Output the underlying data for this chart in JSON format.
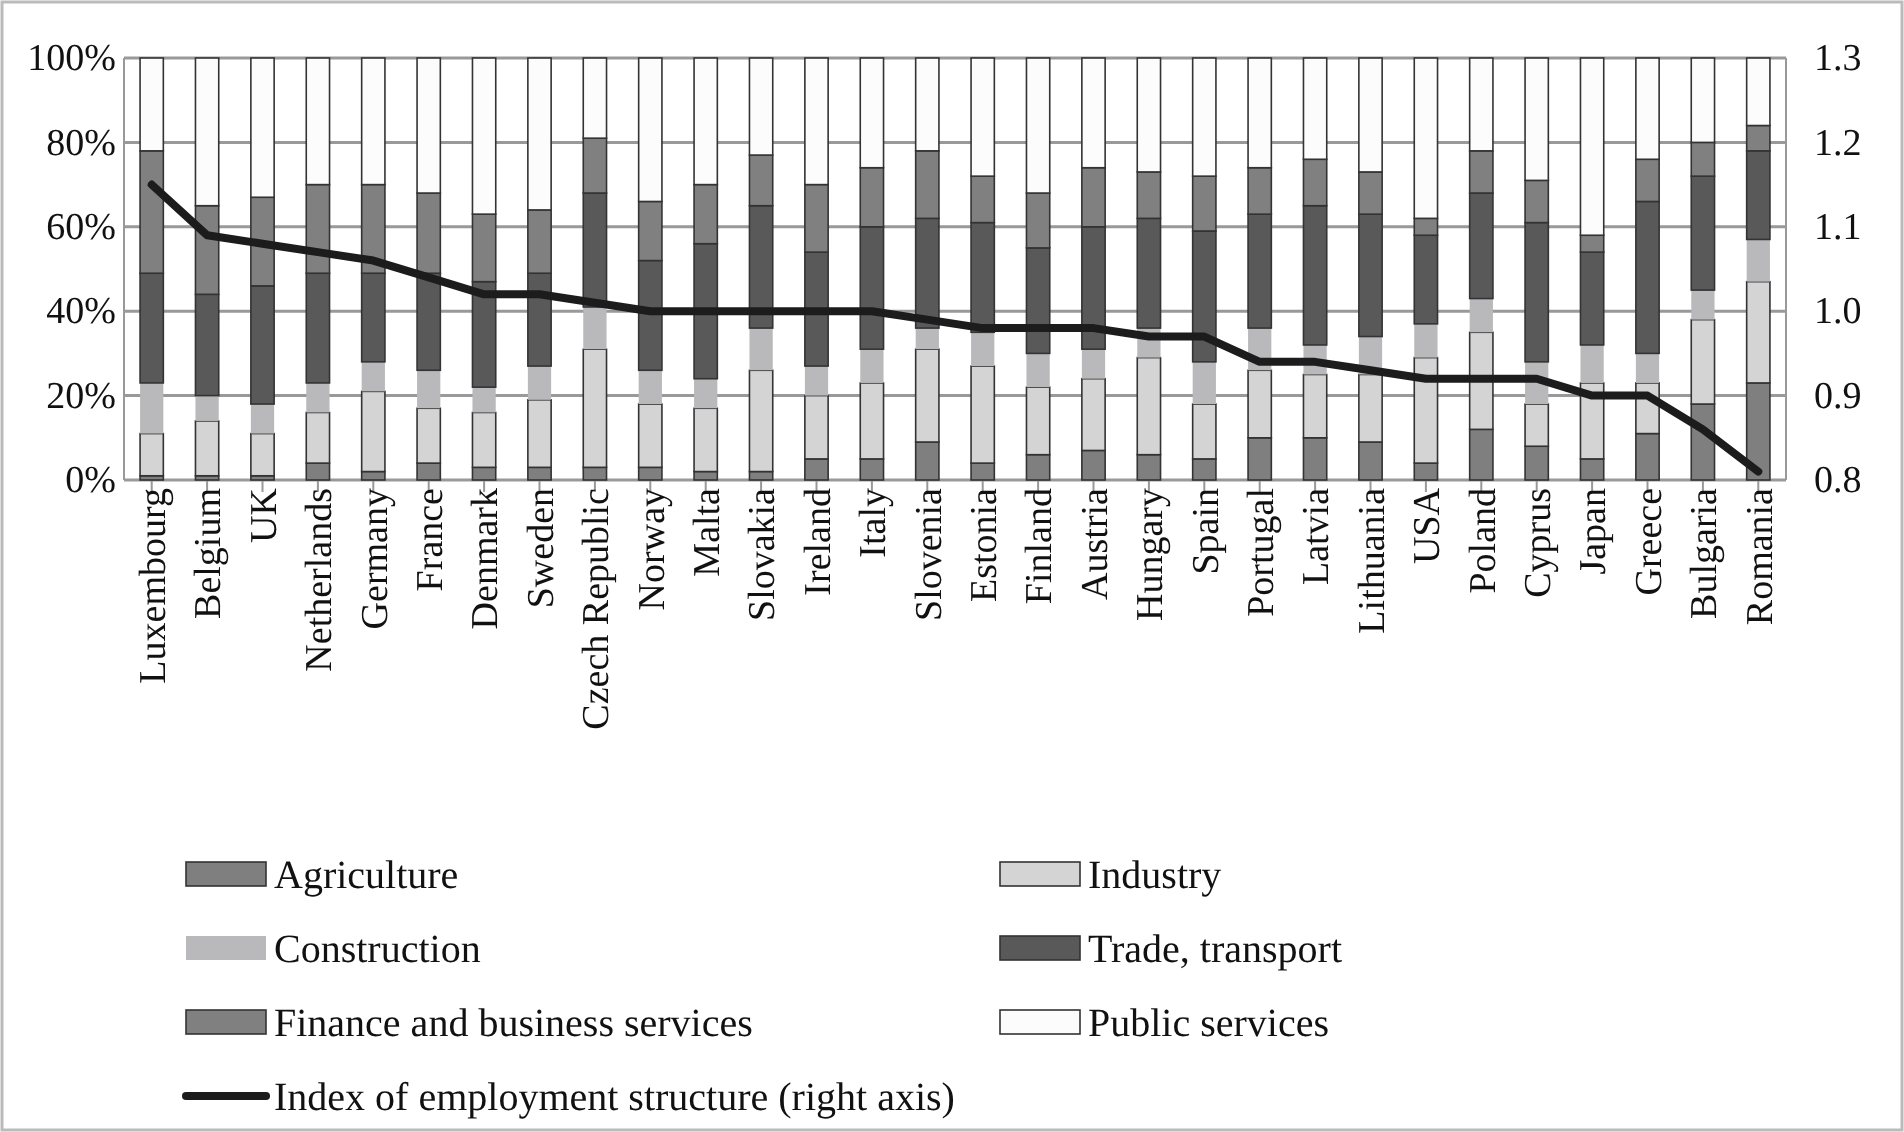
{
  "chart_data": {
    "type": "bar",
    "stacked": true,
    "categories": [
      "Luxembourg",
      "Belgium",
      "UK",
      "Netherlands",
      "Germany",
      "France",
      "Denmark",
      "Sweden",
      "Czech Republic",
      "Norway",
      "Malta",
      "Slovakia",
      "Ireland",
      "Italy",
      "Slovenia",
      "Estonia",
      "Finland",
      "Austria",
      "Hungary",
      "Spain",
      "Portugal",
      "Latvia",
      "Lithuania",
      "USA",
      "Poland",
      "Cyprus",
      "Japan",
      "Greece",
      "Bulgaria",
      "Romania"
    ],
    "series": [
      {
        "name": "Agriculture",
        "color": "#7f7f7f",
        "values": [
          1,
          1,
          1,
          4,
          2,
          4,
          3,
          3,
          3,
          3,
          2,
          2,
          5,
          5,
          9,
          4,
          6,
          7,
          6,
          5,
          10,
          10,
          9,
          4,
          12,
          8,
          5,
          11,
          18,
          23
        ]
      },
      {
        "name": "Industry",
        "color": "#d4d4d4",
        "values": [
          10,
          13,
          10,
          12,
          19,
          13,
          13,
          16,
          28,
          15,
          15,
          24,
          15,
          18,
          22,
          23,
          16,
          17,
          23,
          13,
          16,
          15,
          16,
          25,
          23,
          10,
          18,
          12,
          20,
          24
        ]
      },
      {
        "name": "Construction",
        "color": "#b9b9bc",
        "values": [
          12,
          6,
          7,
          7,
          7,
          9,
          6,
          8,
          10,
          8,
          7,
          10,
          7,
          8,
          5,
          8,
          8,
          7,
          7,
          10,
          10,
          7,
          9,
          8,
          8,
          10,
          9,
          7,
          7,
          10
        ]
      },
      {
        "name": "Trade, transport",
        "color": "#595959",
        "values": [
          26,
          24,
          28,
          26,
          21,
          23,
          25,
          22,
          27,
          26,
          32,
          29,
          27,
          29,
          26,
          26,
          25,
          29,
          26,
          31,
          27,
          33,
          29,
          21,
          25,
          33,
          22,
          36,
          27,
          21
        ]
      },
      {
        "name": "Finance and business services",
        "color": "#808080",
        "values": [
          29,
          21,
          21,
          21,
          21,
          19,
          16,
          15,
          13,
          14,
          14,
          12,
          16,
          14,
          16,
          11,
          13,
          14,
          11,
          13,
          11,
          11,
          10,
          4,
          10,
          10,
          4,
          10,
          8,
          6
        ]
      },
      {
        "name": "Public services",
        "color": "#fcfcfc",
        "values": [
          22,
          35,
          33,
          30,
          30,
          32,
          37,
          36,
          19,
          34,
          30,
          23,
          30,
          26,
          22,
          28,
          32,
          26,
          27,
          28,
          26,
          24,
          27,
          38,
          22,
          29,
          42,
          24,
          20,
          16
        ]
      },
      {
        "name": "Index of employment structure (right axis)",
        "type": "line",
        "axis": "y2",
        "color": "#1c1c1c",
        "values": [
          1.15,
          1.09,
          1.08,
          1.07,
          1.06,
          1.04,
          1.02,
          1.02,
          1.01,
          1.0,
          1.0,
          1.0,
          1.0,
          1.0,
          0.99,
          0.98,
          0.98,
          0.98,
          0.97,
          0.97,
          0.94,
          0.94,
          0.93,
          0.92,
          0.92,
          0.92,
          0.9,
          0.9,
          0.86,
          0.81
        ]
      }
    ],
    "ylim": [
      0,
      100
    ],
    "yticks": [
      {
        "value": 0,
        "label": "0%"
      },
      {
        "value": 20,
        "label": "20%"
      },
      {
        "value": 40,
        "label": "40%"
      },
      {
        "value": 60,
        "label": "60%"
      },
      {
        "value": 80,
        "label": "80%"
      },
      {
        "value": 100,
        "label": "100%"
      }
    ],
    "y2lim": [
      0.8,
      1.3
    ],
    "y2ticks": [
      0.8,
      0.9,
      {
        "value": 1.0,
        "label": "1.0"
      },
      1.1,
      1.2,
      1.3
    ],
    "grid": "y",
    "legend": "bottom"
  }
}
